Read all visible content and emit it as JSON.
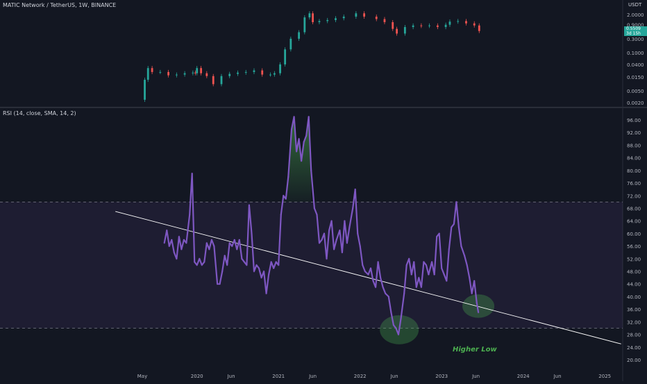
{
  "header": {
    "symbol_title": "MATIC Network / TetherUS, 1W, BINANCE",
    "currency": "USDT",
    "rsi_title": "RSI (14, close, SMA, 14, 2)"
  },
  "price_tag": {
    "line1": "0.5509",
    "line2": "3d 15h"
  },
  "annotation": "Higher Low",
  "colors": {
    "background": "#131722",
    "up_candle": "#26a69a",
    "down_candle": "#ef5350",
    "rsi_line": "#7e57c2",
    "rsi_band": "#7e57c2",
    "trendline": "#ffffff",
    "highlight": "#4caf50"
  },
  "chart_data": [
    {
      "type": "candlestick",
      "title": "MATIC Network / TetherUS, 1W, BINANCE",
      "y_scale": "log",
      "ylabel": "USDT",
      "y_ticks": [
        2.0,
        0.9,
        0.3,
        0.1,
        0.04,
        0.015,
        0.005,
        0.002
      ],
      "y_tick_labels": [
        "2.0000",
        "0.9000",
        "0.3000",
        "0.1000",
        "0.0400",
        "0.0150",
        "0.0050",
        "0.0020"
      ],
      "x_tick_labels": [
        "May",
        "2020",
        "Jun",
        "2021",
        "Jun",
        "2022",
        "Jun",
        "2023",
        "Jun",
        "2024",
        "Jun",
        "2025"
      ],
      "last_price": 0.5509,
      "series_close": [
        [
          2019.33,
          0.0025
        ],
        [
          2019.36,
          0.012
        ],
        [
          2019.4,
          0.03
        ],
        [
          2019.45,
          0.022
        ],
        [
          2019.55,
          0.022
        ],
        [
          2019.65,
          0.017
        ],
        [
          2019.75,
          0.018
        ],
        [
          2019.85,
          0.02
        ],
        [
          2019.95,
          0.021
        ],
        [
          2019.98,
          0.02
        ],
        [
          2020.0,
          0.03
        ],
        [
          2020.05,
          0.02
        ],
        [
          2020.12,
          0.016
        ],
        [
          2020.2,
          0.0085
        ],
        [
          2020.3,
          0.016
        ],
        [
          2020.4,
          0.019
        ],
        [
          2020.5,
          0.021
        ],
        [
          2020.6,
          0.022
        ],
        [
          2020.7,
          0.025
        ],
        [
          2020.8,
          0.018
        ],
        [
          2020.9,
          0.018
        ],
        [
          2020.95,
          0.02
        ],
        [
          2021.02,
          0.04
        ],
        [
          2021.08,
          0.13
        ],
        [
          2021.15,
          0.3
        ],
        [
          2021.25,
          0.5
        ],
        [
          2021.32,
          1.6
        ],
        [
          2021.38,
          2.2
        ],
        [
          2021.42,
          1.1
        ],
        [
          2021.5,
          1.2
        ],
        [
          2021.6,
          1.3
        ],
        [
          2021.7,
          1.5
        ],
        [
          2021.8,
          1.7
        ],
        [
          2021.95,
          2.2
        ],
        [
          2022.05,
          1.7
        ],
        [
          2022.2,
          1.4
        ],
        [
          2022.3,
          1.1
        ],
        [
          2022.4,
          0.65
        ],
        [
          2022.45,
          0.45
        ],
        [
          2022.55,
          0.75
        ],
        [
          2022.65,
          0.85
        ],
        [
          2022.75,
          0.82
        ],
        [
          2022.85,
          0.85
        ],
        [
          2022.95,
          0.75
        ],
        [
          2023.05,
          0.9
        ],
        [
          2023.1,
          1.15
        ],
        [
          2023.2,
          1.2
        ],
        [
          2023.3,
          1.0
        ],
        [
          2023.4,
          0.85
        ],
        [
          2023.46,
          0.55
        ]
      ]
    },
    {
      "type": "line",
      "title": "RSI (14, close, SMA, 14, 2)",
      "ylim": [
        18,
        98
      ],
      "y_ticks": [
        96,
        92,
        88,
        84,
        80,
        76,
        72,
        68,
        64,
        60,
        56,
        52,
        48,
        44,
        40,
        36,
        32,
        28,
        24,
        20
      ],
      "y_tick_labels": [
        "96.00",
        "92.00",
        "88.00",
        "84.00",
        "80.00",
        "76.00",
        "72.00",
        "68.00",
        "64.00",
        "60.00",
        "56.00",
        "52.00",
        "48.00",
        "44.00",
        "40.00",
        "36.00",
        "32.00",
        "28.00",
        "24.00",
        "20.00"
      ],
      "x_tick_labels": [
        "May",
        "2020",
        "Jun",
        "2021",
        "Jun",
        "2022",
        "Jun",
        "2023",
        "Jun",
        "2024",
        "Jun",
        "2025"
      ],
      "band": {
        "upper": 70,
        "lower": 30
      },
      "series": [
        {
          "values": [
            [
              2019.6,
              57
            ],
            [
              2019.63,
              61
            ],
            [
              2019.66,
              56
            ],
            [
              2019.69,
              58
            ],
            [
              2019.72,
              54
            ],
            [
              2019.75,
              52
            ],
            [
              2019.78,
              59
            ],
            [
              2019.81,
              55
            ],
            [
              2019.84,
              58
            ],
            [
              2019.87,
              57
            ],
            [
              2019.91,
              66
            ],
            [
              2019.94,
              79
            ],
            [
              2019.97,
              51
            ],
            [
              2020.0,
              50
            ],
            [
              2020.03,
              52
            ],
            [
              2020.06,
              50
            ],
            [
              2020.09,
              51
            ],
            [
              2020.12,
              57
            ],
            [
              2020.15,
              55
            ],
            [
              2020.18,
              58
            ],
            [
              2020.21,
              56
            ],
            [
              2020.25,
              44
            ],
            [
              2020.28,
              44
            ],
            [
              2020.31,
              48
            ],
            [
              2020.34,
              53
            ],
            [
              2020.37,
              50
            ],
            [
              2020.4,
              57
            ],
            [
              2020.43,
              56
            ],
            [
              2020.46,
              58
            ],
            [
              2020.49,
              55
            ],
            [
              2020.52,
              58
            ],
            [
              2020.55,
              52
            ],
            [
              2020.58,
              51
            ],
            [
              2020.61,
              50
            ],
            [
              2020.64,
              69
            ],
            [
              2020.67,
              60
            ],
            [
              2020.7,
              48
            ],
            [
              2020.73,
              50
            ],
            [
              2020.76,
              49
            ],
            [
              2020.79,
              46
            ],
            [
              2020.82,
              48
            ],
            [
              2020.85,
              41
            ],
            [
              2020.88,
              47
            ],
            [
              2020.91,
              51
            ],
            [
              2020.94,
              49
            ],
            [
              2020.97,
              51
            ],
            [
              2021.0,
              50
            ],
            [
              2021.03,
              66
            ],
            [
              2021.06,
              72
            ],
            [
              2021.09,
              71
            ],
            [
              2021.12,
              78
            ],
            [
              2021.16,
              93
            ],
            [
              2021.19,
              97
            ],
            [
              2021.22,
              86
            ],
            [
              2021.25,
              90
            ],
            [
              2021.28,
              83
            ],
            [
              2021.31,
              89
            ],
            [
              2021.34,
              91
            ],
            [
              2021.37,
              97
            ],
            [
              2021.4,
              80
            ],
            [
              2021.44,
              68
            ],
            [
              2021.47,
              66
            ],
            [
              2021.5,
              57
            ],
            [
              2021.53,
              58
            ],
            [
              2021.56,
              60
            ],
            [
              2021.59,
              52
            ],
            [
              2021.62,
              61
            ],
            [
              2021.65,
              64
            ],
            [
              2021.68,
              55
            ],
            [
              2021.71,
              58
            ],
            [
              2021.75,
              61
            ],
            [
              2021.78,
              54
            ],
            [
              2021.81,
              64
            ],
            [
              2021.84,
              57
            ],
            [
              2021.87,
              62
            ],
            [
              2021.91,
              68
            ],
            [
              2021.94,
              74
            ],
            [
              2021.97,
              60
            ],
            [
              2022.0,
              56
            ],
            [
              2022.03,
              50
            ],
            [
              2022.06,
              48
            ],
            [
              2022.1,
              47
            ],
            [
              2022.13,
              49
            ],
            [
              2022.16,
              45
            ],
            [
              2022.19,
              43
            ],
            [
              2022.22,
              51
            ],
            [
              2022.25,
              46
            ],
            [
              2022.28,
              43
            ],
            [
              2022.31,
              41
            ],
            [
              2022.35,
              40
            ],
            [
              2022.38,
              35
            ],
            [
              2022.41,
              31
            ],
            [
              2022.44,
              30
            ],
            [
              2022.47,
              28
            ],
            [
              2022.5,
              33
            ],
            [
              2022.54,
              41
            ],
            [
              2022.57,
              50
            ],
            [
              2022.6,
              52
            ],
            [
              2022.63,
              47
            ],
            [
              2022.66,
              51
            ],
            [
              2022.69,
              43
            ],
            [
              2022.72,
              46
            ],
            [
              2022.75,
              43
            ],
            [
              2022.78,
              51
            ],
            [
              2022.81,
              50
            ],
            [
              2022.84,
              47
            ],
            [
              2022.88,
              51
            ],
            [
              2022.91,
              47
            ],
            [
              2022.94,
              59
            ],
            [
              2022.97,
              60
            ],
            [
              2023.0,
              49
            ],
            [
              2023.03,
              47
            ],
            [
              2023.06,
              45
            ],
            [
              2023.09,
              55
            ],
            [
              2023.12,
              62
            ],
            [
              2023.15,
              63
            ],
            [
              2023.18,
              70
            ],
            [
              2023.21,
              62
            ],
            [
              2023.24,
              56
            ],
            [
              2023.28,
              53
            ],
            [
              2023.31,
              50
            ],
            [
              2023.34,
              46
            ],
            [
              2023.37,
              41
            ],
            [
              2023.4,
              45
            ],
            [
              2023.43,
              38
            ],
            [
              2023.45,
              35
            ]
          ]
        }
      ],
      "trendline": [
        [
          2019.0,
          67
        ],
        [
          2025.2,
          25
        ]
      ],
      "annotation": "Higher Low",
      "highlight_circles": [
        [
          2022.48,
          29.5
        ],
        [
          2023.45,
          37
        ]
      ]
    }
  ]
}
